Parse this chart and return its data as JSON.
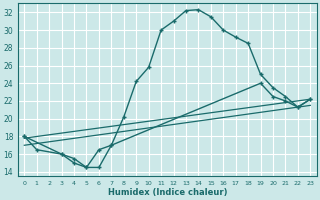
{
  "xlabel": "Humidex (Indice chaleur)",
  "bg_color": "#cce8e8",
  "grid_color": "#ffffff",
  "line_color": "#1a6b6b",
  "xlim": [
    -0.5,
    23.5
  ],
  "ylim": [
    13.5,
    33.0
  ],
  "xticks": [
    0,
    1,
    2,
    3,
    4,
    5,
    6,
    7,
    8,
    9,
    10,
    11,
    12,
    13,
    14,
    15,
    16,
    17,
    18,
    19,
    20,
    21,
    22,
    23
  ],
  "yticks": [
    14,
    16,
    18,
    20,
    22,
    24,
    26,
    28,
    30,
    32
  ],
  "line1_x": [
    0,
    1,
    3,
    4,
    5,
    6,
    7,
    8,
    9,
    10,
    11,
    12,
    13,
    14,
    15,
    16,
    17,
    18,
    19,
    20,
    21,
    22,
    23
  ],
  "line1_y": [
    18.0,
    16.5,
    16.0,
    15.5,
    14.5,
    14.5,
    17.0,
    20.2,
    24.2,
    25.8,
    30.0,
    31.0,
    32.2,
    32.3,
    31.5,
    30.0,
    29.2,
    28.5,
    25.0,
    23.5,
    22.5,
    21.3,
    22.2
  ],
  "line2_x": [
    0,
    3,
    4,
    5,
    6,
    7,
    19,
    20,
    21,
    22,
    23
  ],
  "line2_y": [
    18.0,
    16.0,
    15.0,
    14.5,
    16.5,
    17.0,
    24.0,
    22.5,
    22.0,
    21.3,
    22.2
  ],
  "line3_x": [
    0,
    23
  ],
  "line3_y": [
    17.8,
    22.2
  ],
  "line4_x": [
    0,
    23
  ],
  "line4_y": [
    17.0,
    21.5
  ]
}
